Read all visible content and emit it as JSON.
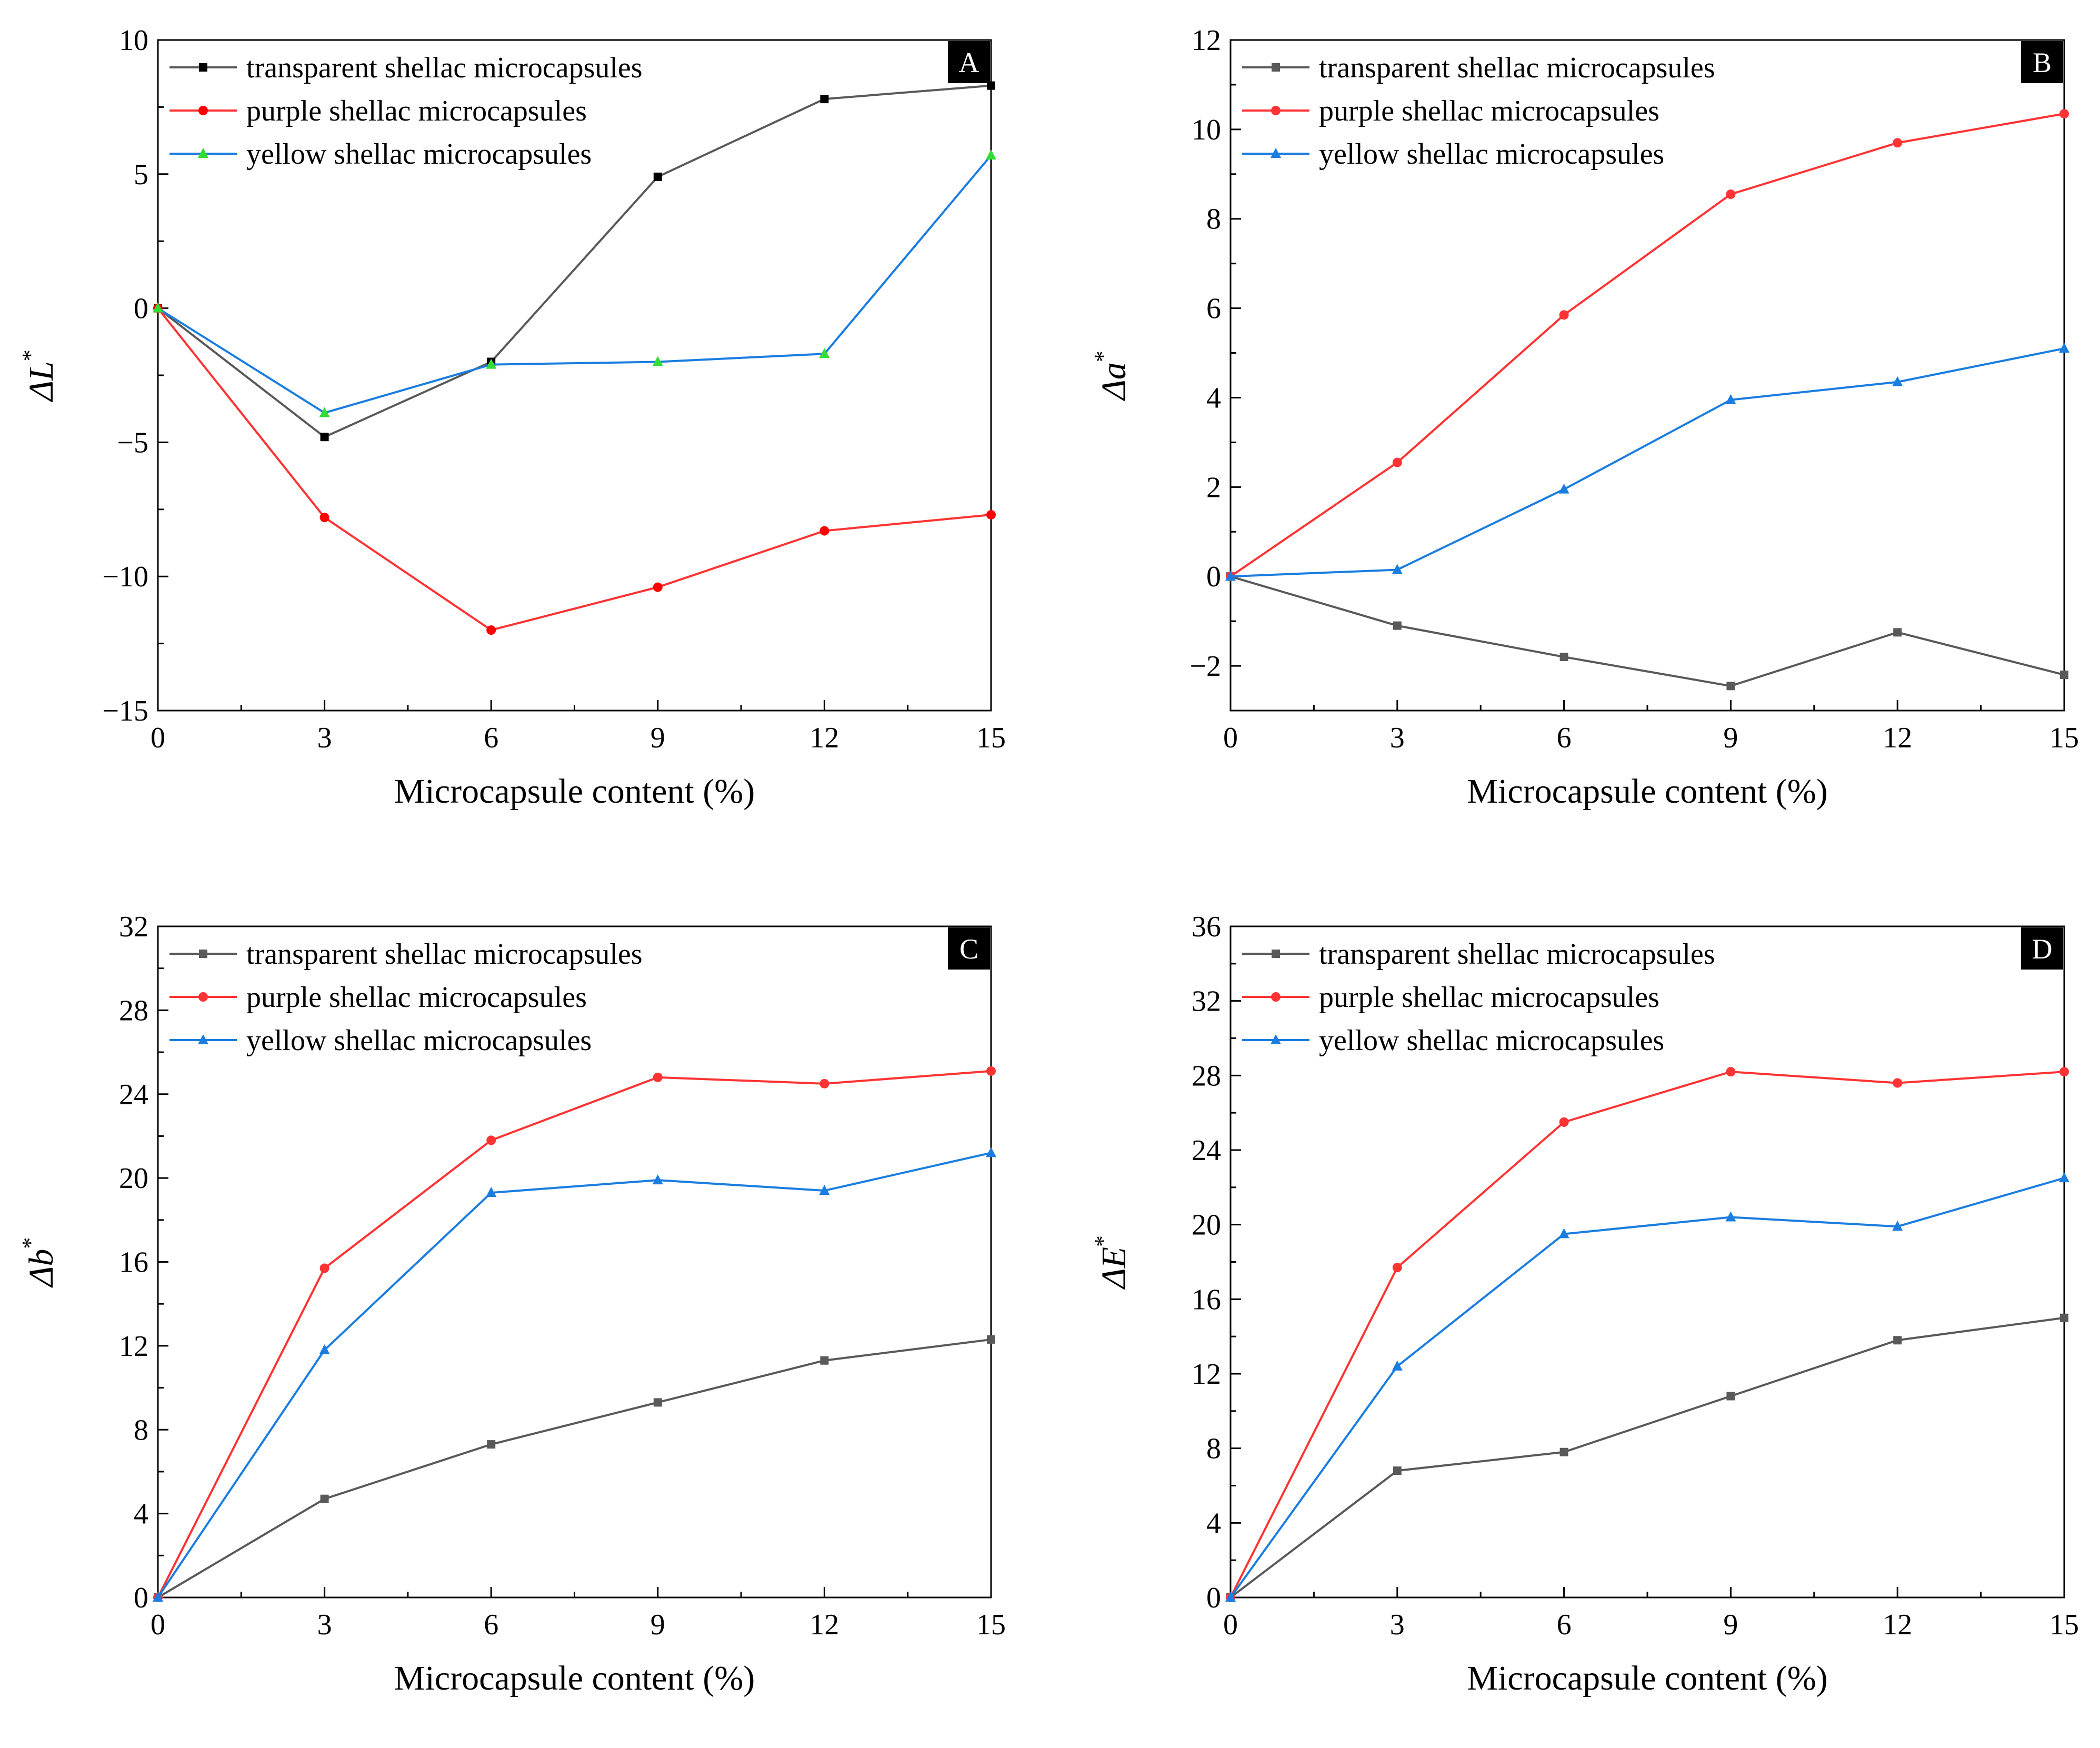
{
  "chart_data": [
    {
      "type": "line",
      "panel": "A",
      "x": [
        0,
        3,
        6,
        9,
        12,
        15
      ],
      "xlabel": "Microcapsule content (%)",
      "ylabel_symbol": "L",
      "ylim": [
        -15,
        10
      ],
      "yticks": [
        -15,
        -10,
        -5,
        0,
        5,
        10
      ],
      "xticks": [
        0,
        3,
        6,
        9,
        12,
        15
      ],
      "legend_position": "top-left",
      "series": [
        {
          "name": "transparent shellac microcapsules",
          "color": "#595959",
          "marker_color": "#000000",
          "marker": "square",
          "values": [
            0,
            -4.8,
            -2.0,
            4.9,
            7.8,
            8.3
          ]
        },
        {
          "name": "purple shellac microcapsules",
          "color": "#ff3333",
          "marker_color": "#ff0000",
          "marker": "circle",
          "values": [
            0,
            -7.8,
            -12.0,
            -10.4,
            -8.3,
            -7.7
          ]
        },
        {
          "name": "yellow shellac microcapsules",
          "color": "#1a7de0",
          "marker_color": "#33dd33",
          "marker": "triangle",
          "values": [
            0,
            -3.9,
            -2.1,
            -2.0,
            -1.7,
            5.7
          ]
        }
      ]
    },
    {
      "type": "line",
      "panel": "B",
      "x": [
        0,
        3,
        6,
        9,
        12,
        15
      ],
      "xlabel": "Microcapsule content (%)",
      "ylabel_symbol": "a",
      "ylim": [
        -3,
        12
      ],
      "yticks": [
        -2,
        0,
        2,
        4,
        6,
        8,
        10,
        12
      ],
      "xticks": [
        0,
        3,
        6,
        9,
        12,
        15
      ],
      "legend_position": "top-left",
      "series": [
        {
          "name": "transparent shellac microcapsules",
          "color": "#595959",
          "marker_color": "#595959",
          "marker": "square",
          "values": [
            0,
            -1.1,
            -1.8,
            -2.45,
            -1.25,
            -2.2
          ]
        },
        {
          "name": "purple shellac microcapsules",
          "color": "#ff3333",
          "marker_color": "#ff3333",
          "marker": "circle",
          "values": [
            0,
            2.55,
            5.85,
            8.55,
            9.7,
            10.35
          ]
        },
        {
          "name": "yellow shellac microcapsules",
          "color": "#1a7de0",
          "marker_color": "#1a7de0",
          "marker": "triangle",
          "values": [
            0,
            0.15,
            1.95,
            3.95,
            4.35,
            5.1
          ]
        }
      ]
    },
    {
      "type": "line",
      "panel": "C",
      "x": [
        0,
        3,
        6,
        9,
        12,
        15
      ],
      "xlabel": "Microcapsule content (%)",
      "ylabel_symbol": "b",
      "ylim": [
        0,
        32
      ],
      "yticks": [
        0,
        4,
        8,
        12,
        16,
        20,
        24,
        28,
        32
      ],
      "xticks": [
        0,
        3,
        6,
        9,
        12,
        15
      ],
      "legend_position": "top-left",
      "series": [
        {
          "name": "transparent shellac microcapsules",
          "color": "#595959",
          "marker_color": "#595959",
          "marker": "square",
          "values": [
            0,
            4.7,
            7.3,
            9.3,
            11.3,
            12.3
          ]
        },
        {
          "name": "purple shellac microcapsules",
          "color": "#ff3333",
          "marker_color": "#ff3333",
          "marker": "circle",
          "values": [
            0,
            15.7,
            21.8,
            24.8,
            24.5,
            25.1
          ]
        },
        {
          "name": "yellow shellac microcapsules",
          "color": "#1a7de0",
          "marker_color": "#1a7de0",
          "marker": "triangle",
          "values": [
            0,
            11.8,
            19.3,
            19.9,
            19.4,
            21.2
          ]
        }
      ]
    },
    {
      "type": "line",
      "panel": "D",
      "x": [
        0,
        3,
        6,
        9,
        12,
        15
      ],
      "xlabel": "Microcapsule content (%)",
      "ylabel_symbol": "E",
      "ylim": [
        0,
        36
      ],
      "yticks": [
        0,
        4,
        8,
        12,
        16,
        20,
        24,
        28,
        32,
        36
      ],
      "xticks": [
        0,
        3,
        6,
        9,
        12,
        15
      ],
      "legend_position": "top-left",
      "series": [
        {
          "name": "transparent shellac microcapsules",
          "color": "#595959",
          "marker_color": "#595959",
          "marker": "square",
          "values": [
            0,
            6.8,
            7.8,
            10.8,
            13.8,
            15.0
          ]
        },
        {
          "name": "purple shellac microcapsules",
          "color": "#ff3333",
          "marker_color": "#ff3333",
          "marker": "circle",
          "values": [
            0,
            17.7,
            25.5,
            28.2,
            27.6,
            28.2
          ]
        },
        {
          "name": "yellow shellac microcapsules",
          "color": "#1a7de0",
          "marker_color": "#1a7de0",
          "marker": "triangle",
          "values": [
            0,
            12.4,
            19.5,
            20.4,
            19.9,
            22.5
          ]
        }
      ]
    }
  ]
}
